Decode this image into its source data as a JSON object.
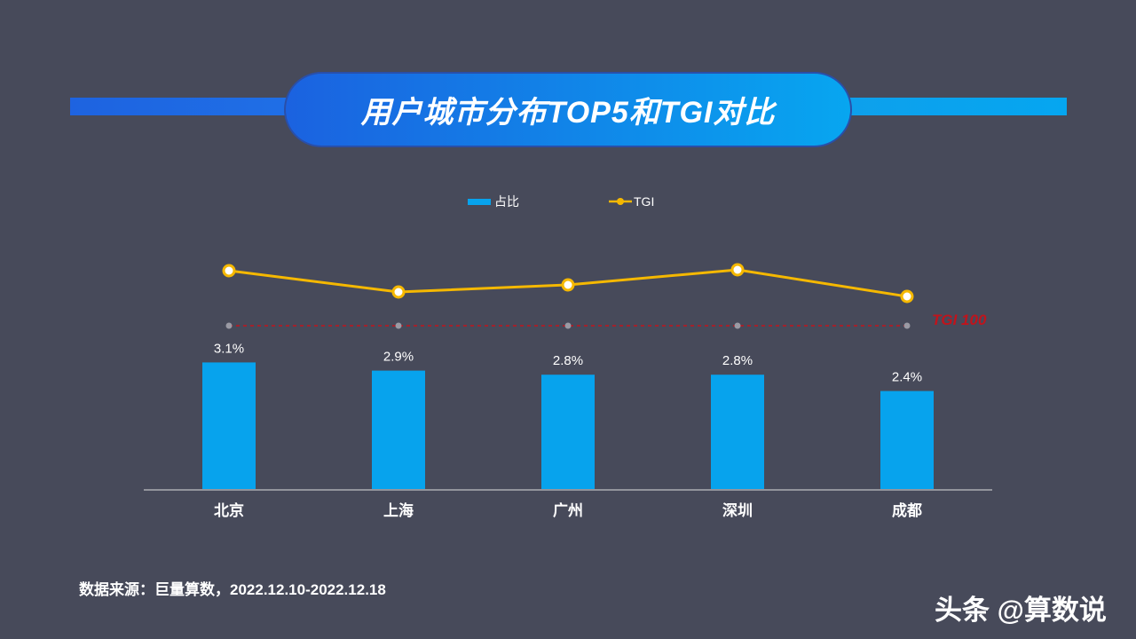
{
  "title": "用户城市分布TOP5和TGI对比",
  "chart_data": {
    "type": "bar",
    "categories": [
      "北京",
      "上海",
      "广州",
      "深圳",
      "成都"
    ],
    "series": [
      {
        "name": "占比",
        "type": "bar",
        "values": [
          3.1,
          2.9,
          2.8,
          2.8,
          2.4
        ],
        "labels": [
          "3.1%",
          "2.9%",
          "2.8%",
          "2.8%",
          "2.4%"
        ],
        "color": "#07a3ed"
      },
      {
        "name": "TGI",
        "type": "line",
        "values": [
          162,
          138,
          146,
          163,
          133
        ],
        "color": "#f5b800"
      }
    ],
    "reference_line": {
      "label": "TGI 100",
      "value": 100,
      "color": "#c0141c"
    },
    "legend": {
      "placement": "top-center",
      "items": [
        "占比",
        "TGI"
      ]
    }
  },
  "source": "数据来源：巨量算数，2022.12.10-2022.12.18",
  "watermark": "头条 @算数说"
}
